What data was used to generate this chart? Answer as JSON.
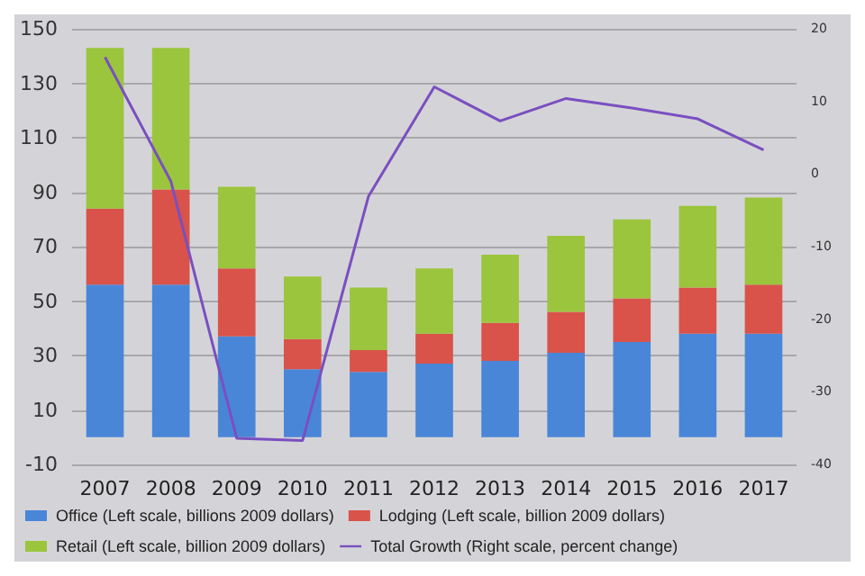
{
  "chart_data": {
    "type": "bar",
    "stacked": true,
    "categories": [
      "2007",
      "2008",
      "2009",
      "2010",
      "2011",
      "2012",
      "2013",
      "2014",
      "2015",
      "2016",
      "2017"
    ],
    "series": [
      {
        "name": "Office (Left scale, billions 2009 dollars)",
        "color": "#4a86d8",
        "values": [
          56,
          56,
          37,
          25,
          24,
          27,
          28,
          31,
          35,
          38,
          38
        ]
      },
      {
        "name": "Lodging (Left scale, billion 2009 dollars)",
        "color": "#d9534a",
        "values": [
          28,
          35,
          25,
          11,
          8,
          11,
          14,
          15,
          16,
          17,
          18
        ]
      },
      {
        "name": "Retail (Left scale, billion 2009 dollars)",
        "color": "#9bc53d",
        "values": [
          59,
          52,
          30,
          23,
          23,
          24,
          25,
          28,
          29,
          30,
          32
        ]
      },
      {
        "name": "Total Growth (Right scale, percent change)",
        "color": "#7a4fc0",
        "type": "line",
        "axis": "y2",
        "values": [
          16.1,
          -1,
          -36.4,
          -36.7,
          -3.1,
          12,
          7.3,
          10.4,
          9.1,
          7.6,
          3.3
        ]
      }
    ],
    "ylim": [
      -10,
      150
    ],
    "yticks": [
      -10,
      10,
      30,
      50,
      70,
      90,
      110,
      130,
      150
    ],
    "y2lim": [
      -40,
      20
    ],
    "y2ticks": [
      -40,
      -30,
      -20,
      -10,
      0,
      10,
      20
    ],
    "grid": "y",
    "legend": "bottom",
    "marker": "none"
  }
}
